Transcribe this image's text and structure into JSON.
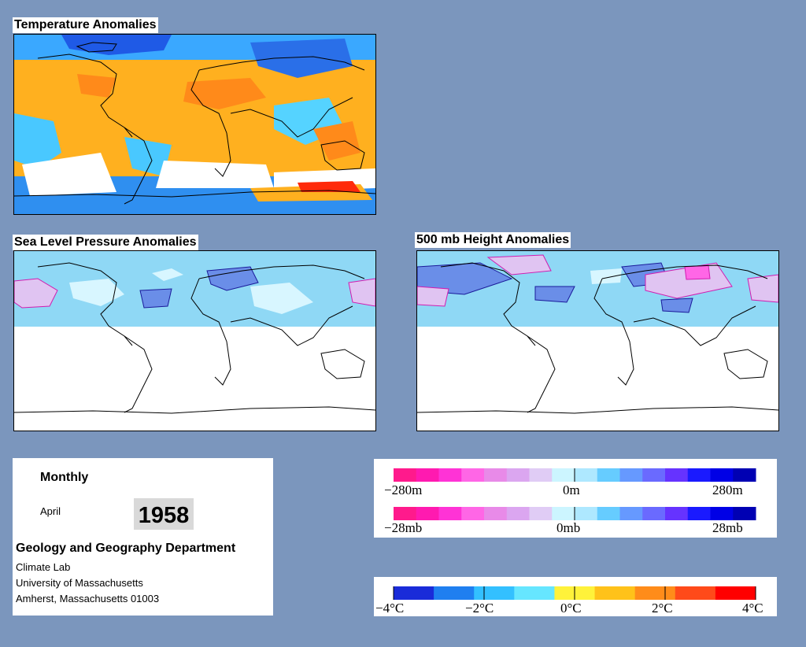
{
  "panels": {
    "temperature": {
      "title": "Temperature Anomalies"
    },
    "slp": {
      "title": "Sea Level Pressure Anomalies"
    },
    "height500": {
      "title": "500 mb Height Anomalies"
    }
  },
  "info": {
    "period": "Monthly",
    "month": "April",
    "year": "1958",
    "department": "Geology and Geography Department",
    "lab": "Climate Lab",
    "university": "University of Massachusetts",
    "address": "Amherst, Massachusetts 01003"
  },
  "legends": {
    "height": {
      "min_label": "−280m",
      "mid_label": "0m",
      "max_label": "280m"
    },
    "pressure": {
      "min_label": "−28mb",
      "mid_label": "0mb",
      "max_label": "28mb"
    },
    "temperature": {
      "labels": [
        "−4°C",
        "−2°C",
        "0°C",
        "2°C",
        "4°C"
      ]
    }
  },
  "colors": {
    "background": "#7b96bd",
    "pink_scale": [
      "#ff1a8c",
      "#ff1ab0",
      "#ff33d6",
      "#ff66e6",
      "#e88ae8",
      "#dba6f0",
      "#e0ccf5",
      "#ccf5ff",
      "#aee8ff",
      "#66ccff",
      "#6699ff",
      "#6a6aff",
      "#6633ff",
      "#1a1aff",
      "#0000e6",
      "#0000b3"
    ],
    "temp_scale": [
      "#1a2bd9",
      "#1f7ff0",
      "#33c0ff",
      "#66e6ff",
      "#fff23a",
      "#ffc21a",
      "#ff8c1a",
      "#ff4a1a",
      "#ff0000"
    ]
  }
}
